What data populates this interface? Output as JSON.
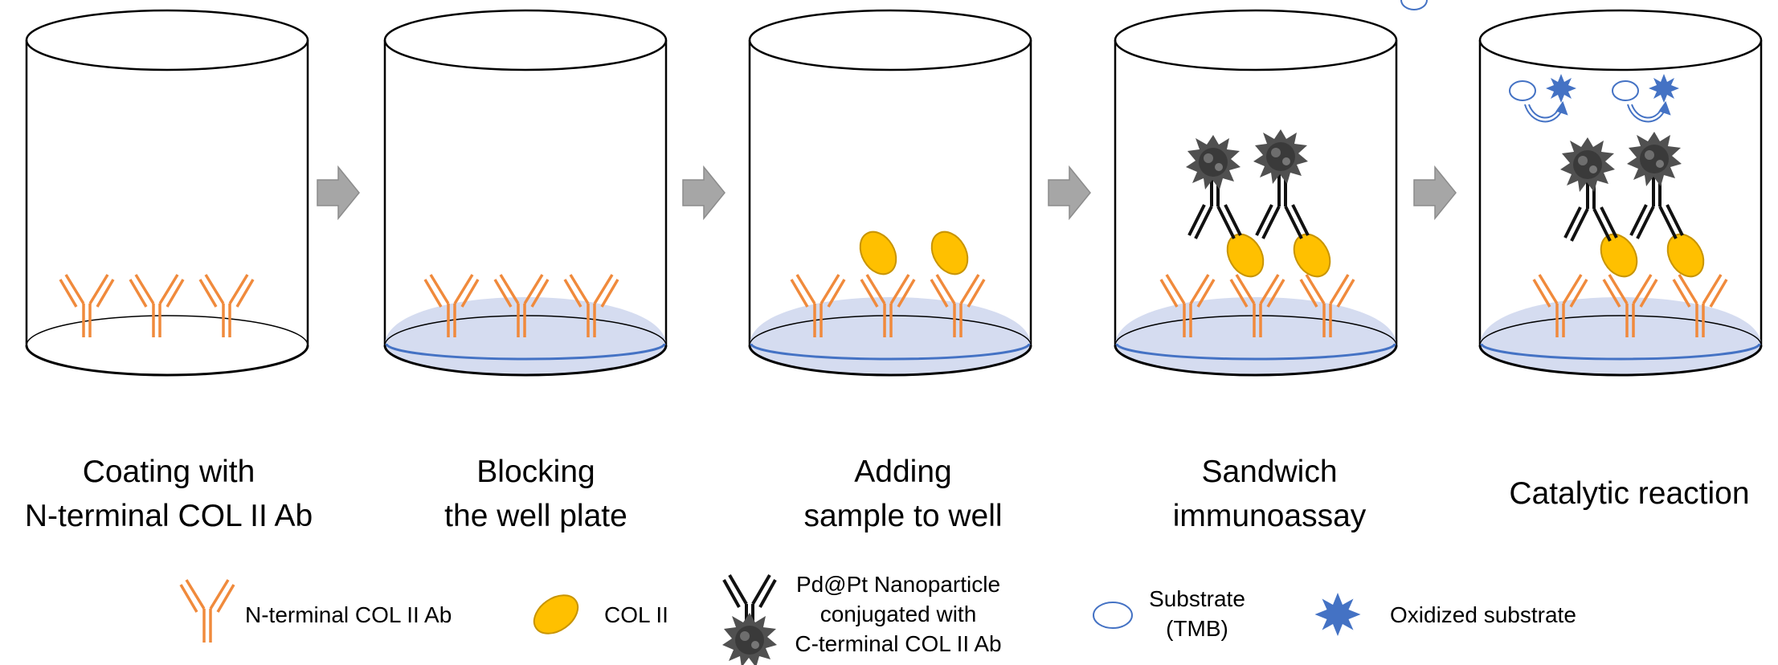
{
  "steps": [
    {
      "line1": "Coating with",
      "line2": "N-terminal COL II Ab"
    },
    {
      "line1": "Blocking",
      "line2": "the well plate"
    },
    {
      "line1": "Adding",
      "line2": "sample to well"
    },
    {
      "line1": "Sandwich",
      "line2": "immunoassay"
    },
    {
      "line1": "Catalytic reaction",
      "line2": ""
    }
  ],
  "legend": {
    "antibody": "N-terminal COL II Ab",
    "col2": "COL II",
    "nanoparticle": [
      "Pd@Pt Nanoparticle",
      "conjugated with",
      "C-terminal COL II Ab"
    ],
    "substrate": [
      "Substrate",
      "(TMB)"
    ],
    "oxidized": "Oxidized substrate"
  },
  "colors": {
    "antibody": "#f08a3c",
    "col2_fill": "#ffc000",
    "col2_stroke": "#c89400",
    "blocking": "#d5dcf0",
    "blocking_line": "#4472c4",
    "oxidized": "#4472c4",
    "arrow": "#a6a6a6",
    "nanoparticle": "#505050"
  }
}
